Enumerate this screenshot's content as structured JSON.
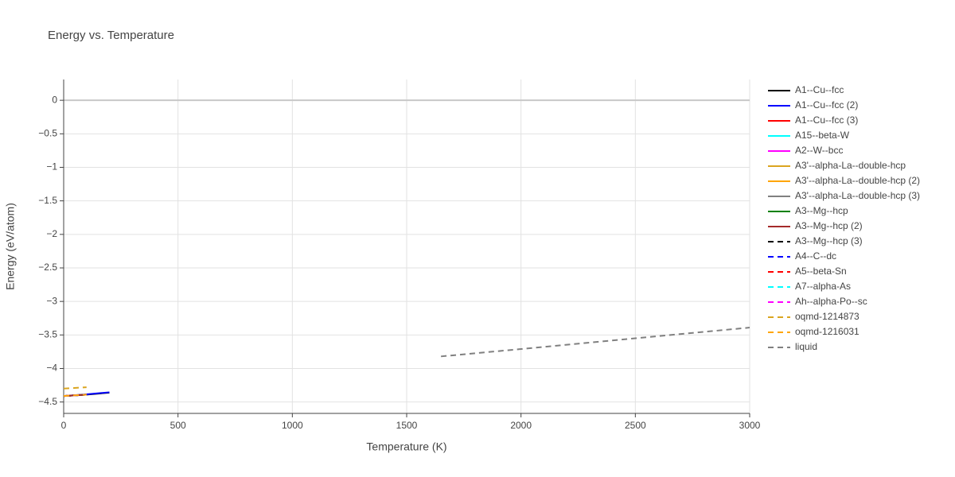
{
  "chart_data": {
    "type": "line",
    "title": "Energy vs. Temperature",
    "x_label": "Temperature (K)",
    "y_label": "Energy (eV/atom)",
    "xlim": [
      0,
      3000
    ],
    "ylim": [
      -4.67,
      0.31
    ],
    "xticks": [
      0,
      500,
      1000,
      1500,
      2000,
      2500,
      3000
    ],
    "yticks": [
      0,
      {
        "value": -0.5,
        "label": "−0.5"
      },
      {
        "value": -1,
        "label": "−1"
      },
      {
        "value": -1.5,
        "label": "−1.5"
      },
      {
        "value": -2,
        "label": "−2"
      },
      {
        "value": -2.5,
        "label": "−2.5"
      },
      {
        "value": -3,
        "label": "−3"
      },
      {
        "value": -3.5,
        "label": "−3.5"
      },
      {
        "value": -4,
        "label": "−4"
      },
      {
        "value": -4.5,
        "label": "−4.5"
      }
    ],
    "grid": true,
    "legend": "right",
    "series": [
      {
        "name": "A1--Cu--fcc",
        "color": "#000000",
        "dash": false,
        "x": [
          0,
          100,
          200
        ],
        "values": [
          -4.41,
          -4.39,
          -4.36
        ]
      },
      {
        "name": "A1--Cu--fcc (2)",
        "color": "#0000ff",
        "dash": false,
        "x": [
          0,
          100,
          200
        ],
        "values": [
          -4.41,
          -4.385,
          -4.355
        ]
      },
      {
        "name": "A1--Cu--fcc (3)",
        "color": "#ff0000",
        "dash": false,
        "x": [
          0,
          100
        ],
        "values": [
          -4.41,
          -4.39
        ]
      },
      {
        "name": "A15--beta-W",
        "color": "#00ffff",
        "dash": false,
        "x": [
          0,
          100
        ],
        "values": [
          -4.41,
          -4.39
        ]
      },
      {
        "name": "A2--W--bcc",
        "color": "#ff00ff",
        "dash": false,
        "x": [
          0,
          100
        ],
        "values": [
          -4.41,
          -4.39
        ]
      },
      {
        "name": "A3'--alpha-La--double-hcp",
        "color": "#daa520",
        "dash": false,
        "x": [
          0,
          100
        ],
        "values": [
          -4.41,
          -4.39
        ]
      },
      {
        "name": "A3'--alpha-La--double-hcp (2)",
        "color": "#ffa500",
        "dash": false,
        "x": [
          0,
          100
        ],
        "values": [
          -4.41,
          -4.39
        ]
      },
      {
        "name": "A3'--alpha-La--double-hcp (3)",
        "color": "#808080",
        "dash": false,
        "x": [
          0,
          100
        ],
        "values": [
          -4.41,
          -4.39
        ]
      },
      {
        "name": "A3--Mg--hcp",
        "color": "#008000",
        "dash": false,
        "x": [
          0,
          100
        ],
        "values": [
          -4.41,
          -4.39
        ]
      },
      {
        "name": "A3--Mg--hcp (2)",
        "color": "#a52a2a",
        "dash": false,
        "x": [
          0,
          100
        ],
        "values": [
          -4.41,
          -4.39
        ]
      },
      {
        "name": "A3--Mg--hcp (3)",
        "color": "#000000",
        "dash": true,
        "x": [
          0,
          100
        ],
        "values": [
          -4.41,
          -4.39
        ]
      },
      {
        "name": "A4--C--dc",
        "color": "#0000ff",
        "dash": true,
        "x": [
          0,
          100
        ],
        "values": [
          -4.41,
          -4.39
        ]
      },
      {
        "name": "A5--beta-Sn",
        "color": "#ff0000",
        "dash": true,
        "x": [
          0,
          100
        ],
        "values": [
          -4.41,
          -4.39
        ]
      },
      {
        "name": "A7--alpha-As",
        "color": "#00ffff",
        "dash": true,
        "x": [
          0,
          100
        ],
        "values": [
          -4.41,
          -4.39
        ]
      },
      {
        "name": "Ah--alpha-Po--sc",
        "color": "#ff00ff",
        "dash": true,
        "x": [
          0,
          100
        ],
        "values": [
          -4.41,
          -4.39
        ]
      },
      {
        "name": "oqmd-1214873",
        "color": "#daa520",
        "dash": true,
        "x": [
          0,
          100
        ],
        "values": [
          -4.3,
          -4.28
        ]
      },
      {
        "name": "oqmd-1216031",
        "color": "#ffa500",
        "dash": true,
        "x": [
          0,
          100
        ],
        "values": [
          -4.41,
          -4.39
        ]
      },
      {
        "name": "liquid",
        "color": "#808080",
        "dash": true,
        "x": [
          1650,
          2000,
          2500,
          3000
        ],
        "values": [
          -3.82,
          -3.71,
          -3.55,
          -3.39
        ]
      }
    ]
  }
}
